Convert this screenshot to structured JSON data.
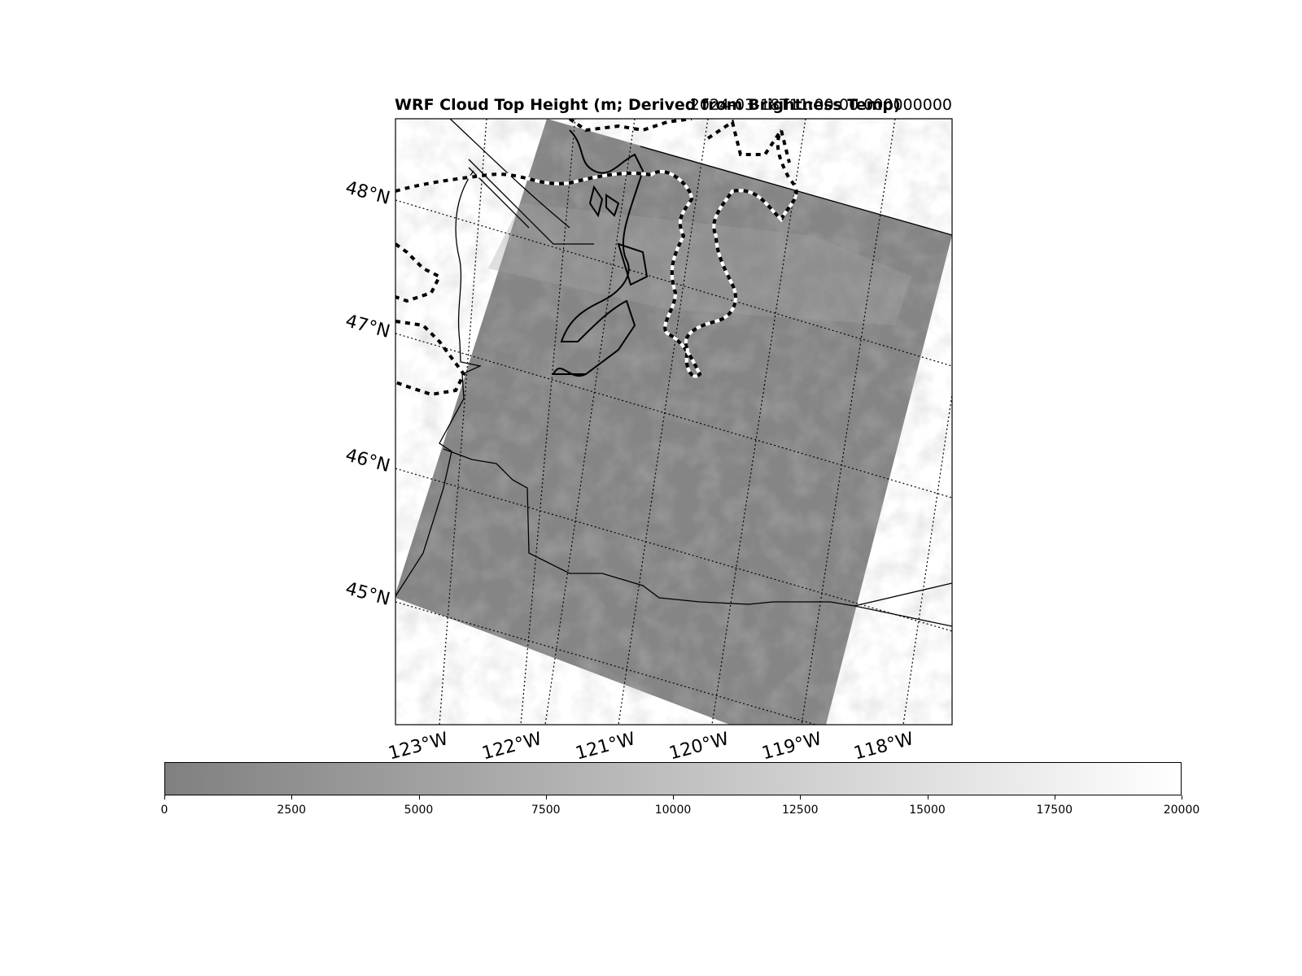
{
  "title": {
    "left": "WRF Cloud Top Height (m; Derived from Brightness Temp)",
    "right": "2024-03-18T11:00:00.000000000"
  },
  "map": {
    "latitude_labels": [
      "48°N",
      "47°N",
      "46°N",
      "45°N"
    ],
    "longitude_labels": [
      "123°W",
      "122°W",
      "121°W",
      "120°W",
      "119°W",
      "118°W"
    ],
    "field_color_low": "#808080",
    "field_color_high": "#ffffff",
    "contour_colors": {
      "dark": "#000000",
      "light": "#ffffff"
    }
  },
  "colorbar": {
    "min": 0,
    "max": 20000,
    "ticks": [
      "0",
      "2500",
      "5000",
      "7500",
      "10000",
      "12500",
      "15000",
      "17500",
      "20000"
    ],
    "colormap": "gray"
  }
}
